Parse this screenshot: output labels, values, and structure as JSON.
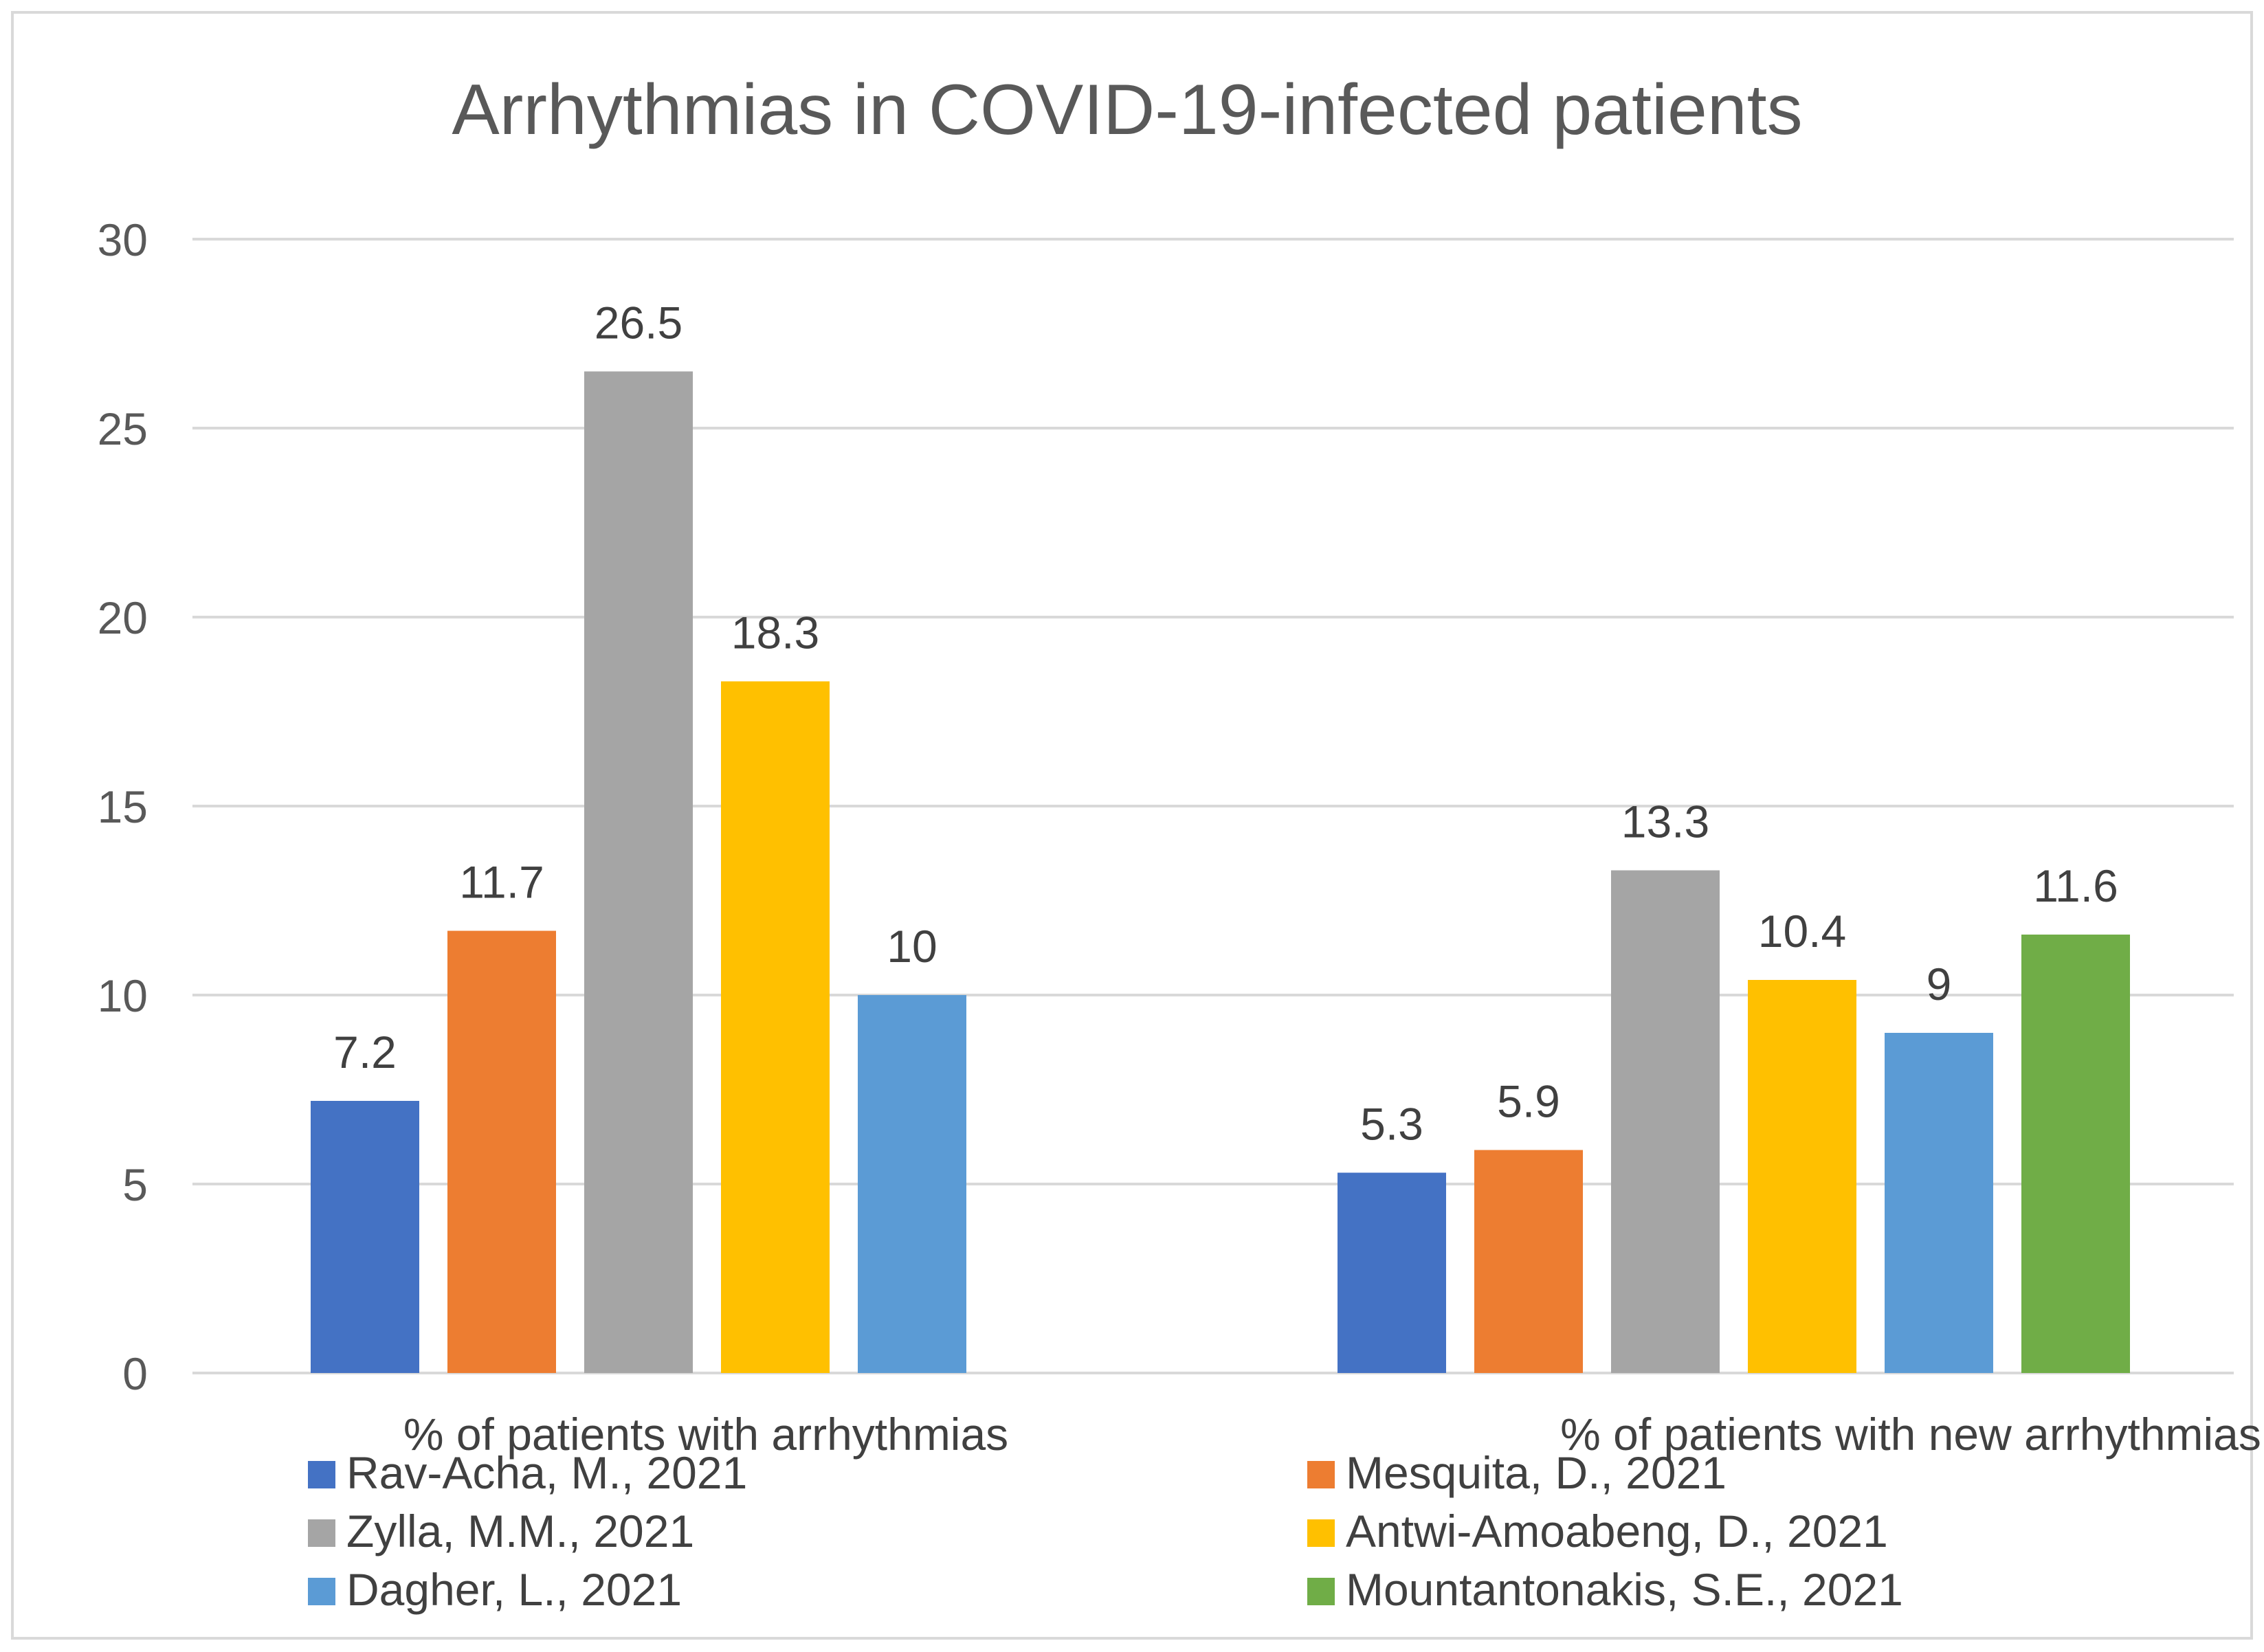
{
  "chart_data": {
    "type": "bar",
    "title": "Arrhythmias in COVID-19-infected patients",
    "categories": [
      "% of patients with arrhythmias",
      "% of patients with new arrhythmias"
    ],
    "ylim": [
      0,
      30
    ],
    "yticks": [
      0,
      5,
      10,
      15,
      20,
      25,
      30
    ],
    "grid": true,
    "legend_position": "bottom",
    "series": [
      {
        "name": "Rav-Acha, M., 2021",
        "color": "#4472C4",
        "values": [
          7.2,
          5.3
        ],
        "labels": [
          "7.2",
          "5.3"
        ]
      },
      {
        "name": "Mesquita, D., 2021",
        "color": "#ED7D31",
        "values": [
          11.7,
          5.9
        ],
        "labels": [
          "11.7",
          "5.9"
        ]
      },
      {
        "name": "Zylla, M.M., 2021",
        "color": "#A5A5A5",
        "values": [
          26.5,
          13.3
        ],
        "labels": [
          "26.5",
          "13.3"
        ]
      },
      {
        "name": "Antwi-Amoabeng, D., 2021",
        "color": "#FFC000",
        "values": [
          18.3,
          10.4
        ],
        "labels": [
          "18.3",
          "10.4"
        ]
      },
      {
        "name": "Dagher, L., 2021",
        "color": "#5B9BD5",
        "values": [
          10,
          9
        ],
        "labels": [
          "10",
          "9"
        ]
      },
      {
        "name": "Mountantonakis, S.E., 2021",
        "color": "#70AD47",
        "values": [
          null,
          11.6
        ],
        "labels": [
          null,
          "11.6"
        ]
      }
    ]
  }
}
